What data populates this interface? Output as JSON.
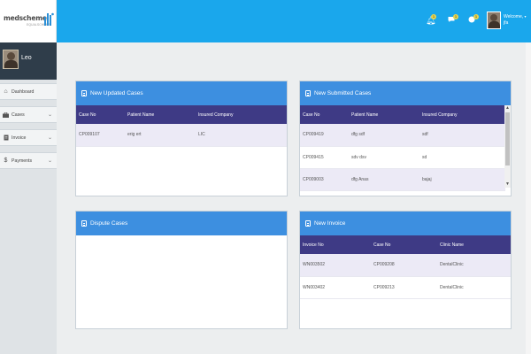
{
  "brand": {
    "logo_text": "medscheme",
    "logo_sub": "EQUALSCHEME"
  },
  "sidebar": {
    "user_name": "Leo",
    "items": [
      {
        "label": "Dashboard",
        "icon": "home-icon"
      },
      {
        "label": "Cases",
        "icon": "briefcase-icon",
        "has_submenu": true
      },
      {
        "label": "Invoice",
        "icon": "file-icon",
        "has_submenu": true
      },
      {
        "label": "Payments",
        "icon": "dollar-icon",
        "has_submenu": true
      }
    ]
  },
  "header": {
    "badges": [
      "1",
      "1",
      "1"
    ],
    "welcome_line1": "Welcome,",
    "welcome_line2": "jfa"
  },
  "panels": {
    "updated": {
      "title": "New Updated Cases",
      "columns": [
        "Case No",
        "Patient Name",
        "Insured Company"
      ],
      "rows": [
        [
          "CP009107",
          "erig ert",
          "LIC"
        ]
      ]
    },
    "submitted": {
      "title": "New Submitted Cases",
      "columns": [
        "Case No",
        "Patient Name",
        "Insured Company"
      ],
      "rows": [
        [
          "CP009419",
          "dfg sdf",
          "sdf"
        ],
        [
          "CP009415",
          "sdv dsv",
          "sd"
        ],
        [
          "CP009003",
          "dfg Anas",
          "bajaj"
        ]
      ]
    },
    "dispute": {
      "title": "Dispute Cases"
    },
    "invoice": {
      "title": "New Invoice",
      "columns": [
        "Invoice No",
        "Case No",
        "Clinic Name"
      ],
      "rows": [
        [
          "WN003502",
          "CP009208",
          "DentalClinic"
        ],
        [
          "WN003402",
          "CP009213",
          "DentalClinic"
        ]
      ]
    }
  },
  "colors": {
    "header": "#1aa7ec",
    "panel_head": "#3d8fe0",
    "table_head": "#3e3a85",
    "sidebar_user": "#2f3d4a"
  }
}
